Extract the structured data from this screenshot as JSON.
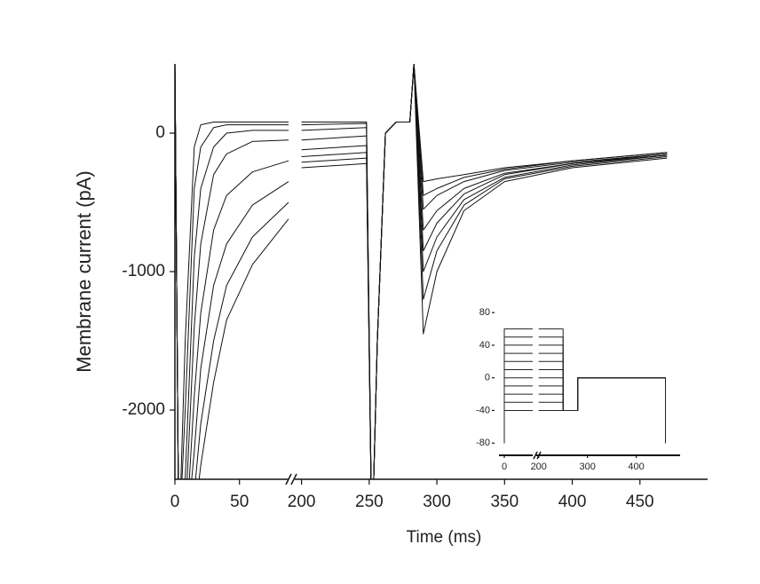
{
  "chart_data": [
    {
      "type": "line",
      "xlabel": "Time (ms)",
      "ylabel": "Membrane current (pA)",
      "x_segments": [
        {
          "xlim": [
            0,
            88
          ],
          "xticks": [
            0,
            50
          ]
        },
        {
          "xlim": [
            195,
            500
          ],
          "xticks": [
            200,
            250,
            300,
            350,
            400,
            450
          ]
        }
      ],
      "ylim": [
        -2500,
        500
      ],
      "yticks": [
        -2000,
        -1000,
        0
      ],
      "color": "#111111",
      "x": [
        0,
        3,
        8,
        15,
        20,
        30,
        40,
        60,
        88,
        200,
        248,
        252,
        256,
        262,
        270,
        280,
        283,
        290,
        300,
        320,
        350,
        400,
        470
      ],
      "series": [
        {
          "values": [
            500,
            -3000,
            -1500,
            -100,
            60,
            80,
            80,
            80,
            80,
            80,
            80,
            -3000,
            -1500,
            0,
            80,
            80,
            500,
            -350,
            -330,
            -300,
            -250,
            -200,
            -140
          ]
        },
        {
          "values": [
            500,
            -3000,
            -2000,
            -400,
            -100,
            40,
            60,
            60,
            60,
            60,
            70,
            -3000,
            -1500,
            0,
            80,
            80,
            500,
            -450,
            -400,
            -320,
            -260,
            -200,
            -140
          ]
        },
        {
          "values": [
            500,
            -3000,
            -2500,
            -900,
            -400,
            -100,
            0,
            20,
            20,
            20,
            40,
            -3000,
            -1500,
            0,
            80,
            80,
            500,
            -550,
            -450,
            -350,
            -270,
            -210,
            -150
          ]
        },
        {
          "values": [
            500,
            -3000,
            -2800,
            -1400,
            -800,
            -300,
            -150,
            -60,
            -50,
            -50,
            -20,
            -3000,
            -1500,
            0,
            80,
            80,
            500,
            -700,
            -560,
            -400,
            -290,
            -220,
            -150
          ]
        },
        {
          "values": [
            500,
            -3000,
            -3000,
            -1900,
            -1300,
            -700,
            -450,
            -280,
            -200,
            -120,
            -90,
            -3000,
            -1500,
            0,
            80,
            80,
            500,
            -850,
            -650,
            -440,
            -300,
            -220,
            -160
          ]
        },
        {
          "values": [
            500,
            -3000,
            -3000,
            -2300,
            -1700,
            -1100,
            -800,
            -520,
            -350,
            -170,
            -140,
            -3000,
            -1500,
            0,
            80,
            80,
            500,
            -1000,
            -750,
            -480,
            -320,
            -230,
            -160
          ]
        },
        {
          "values": [
            500,
            -3000,
            -3000,
            -2600,
            -2100,
            -1500,
            -1100,
            -750,
            -500,
            -210,
            -180,
            -3000,
            -1500,
            0,
            80,
            80,
            500,
            -1200,
            -850,
            -520,
            -330,
            -240,
            -170
          ]
        },
        {
          "values": [
            500,
            -3000,
            -3000,
            -2800,
            -2400,
            -1800,
            -1350,
            -950,
            -620,
            -250,
            -220,
            -3000,
            -1500,
            0,
            80,
            80,
            500,
            -1450,
            -1000,
            -560,
            -350,
            -250,
            -180
          ]
        }
      ]
    },
    {
      "type": "line",
      "x_segments": [
        {
          "xlim": [
            -15,
            80
          ],
          "xticks": [
            0
          ]
        },
        {
          "xlim": [
            195,
            490
          ],
          "xticks": [
            200,
            300,
            400
          ]
        }
      ],
      "ylim": [
        -95,
        90
      ],
      "yticks": [
        -80,
        -40,
        0,
        40,
        80
      ],
      "color": "#222222",
      "x": [
        0,
        0,
        80,
        200,
        250,
        250,
        280,
        280,
        460,
        460
      ],
      "series": [
        {
          "values": [
            -80,
            -40,
            -40,
            -40,
            -40,
            -40,
            -40,
            0,
            0,
            -80
          ]
        },
        {
          "values": [
            -80,
            -30,
            -30,
            -30,
            -30,
            -40,
            -40,
            0,
            0,
            -80
          ]
        },
        {
          "values": [
            -80,
            -20,
            -20,
            -20,
            -20,
            -40,
            -40,
            0,
            0,
            -80
          ]
        },
        {
          "values": [
            -80,
            -10,
            -10,
            -10,
            -10,
            -40,
            -40,
            0,
            0,
            -80
          ]
        },
        {
          "values": [
            -80,
            0,
            0,
            0,
            0,
            -40,
            -40,
            0,
            0,
            -80
          ]
        },
        {
          "values": [
            -80,
            10,
            10,
            10,
            10,
            -40,
            -40,
            0,
            0,
            -80
          ]
        },
        {
          "values": [
            -80,
            20,
            20,
            20,
            20,
            -40,
            -40,
            0,
            0,
            -80
          ]
        },
        {
          "values": [
            -80,
            30,
            30,
            30,
            30,
            -40,
            -40,
            0,
            0,
            -80
          ]
        },
        {
          "values": [
            -80,
            40,
            40,
            40,
            40,
            -40,
            -40,
            0,
            0,
            -80
          ]
        },
        {
          "values": [
            -80,
            50,
            50,
            50,
            50,
            -40,
            -40,
            0,
            0,
            -80
          ]
        },
        {
          "values": [
            -80,
            60,
            60,
            60,
            60,
            -40,
            -40,
            0,
            0,
            -80
          ]
        }
      ]
    }
  ]
}
